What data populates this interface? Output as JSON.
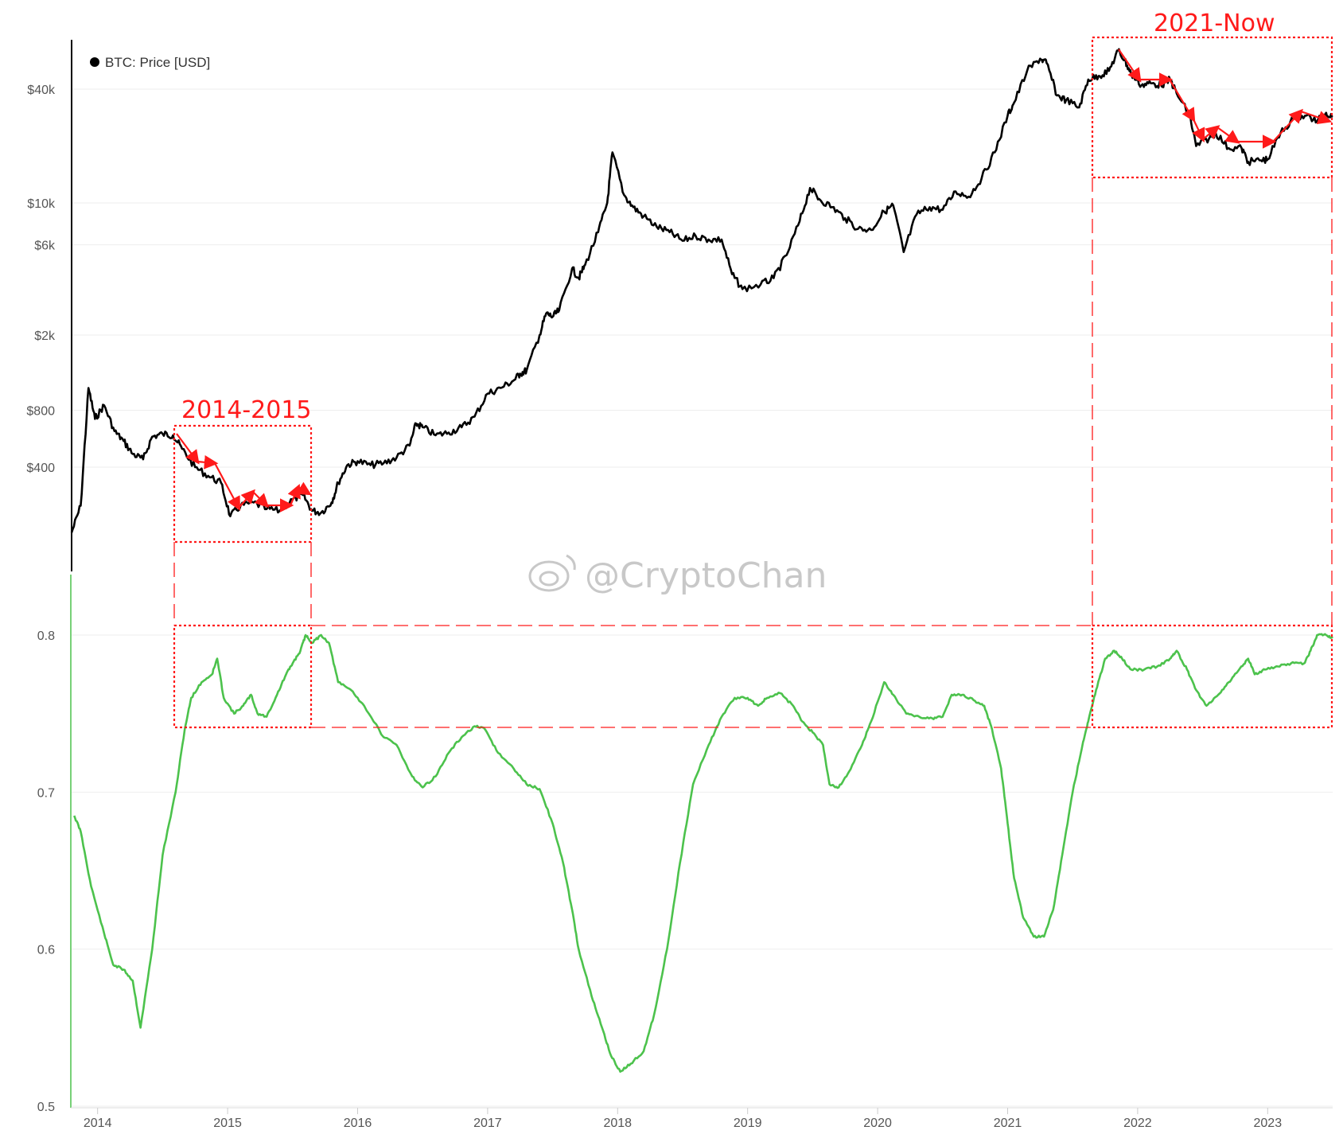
{
  "legend": {
    "label": "BTC: Price [USD]",
    "color": "#000000"
  },
  "annotations": {
    "period_1": "2014-2015",
    "period_2": "2021-Now",
    "color": "#ff1a1a"
  },
  "watermark": "@CryptoChan",
  "chart_data": [
    {
      "type": "line",
      "title": "",
      "yscale": "log",
      "ylim": [
        120,
        80000
      ],
      "y_ticks": [
        {
          "label": "$40k",
          "value": 40000
        },
        {
          "label": "$10k",
          "value": 10000
        },
        {
          "label": "$6k",
          "value": 6000
        },
        {
          "label": "$2k",
          "value": 2000
        },
        {
          "label": "$800",
          "value": 800
        },
        {
          "label": "$400",
          "value": 400
        }
      ],
      "series": [
        {
          "name": "BTC: Price [USD]",
          "color": "#000000",
          "points": [
            [
              2013.8,
              180
            ],
            [
              2013.87,
              250
            ],
            [
              2013.93,
              1050
            ],
            [
              2013.98,
              720
            ],
            [
              2014.05,
              850
            ],
            [
              2014.13,
              620
            ],
            [
              2014.2,
              550
            ],
            [
              2014.27,
              470
            ],
            [
              2014.35,
              440
            ],
            [
              2014.42,
              580
            ],
            [
              2014.5,
              600
            ],
            [
              2014.58,
              590
            ],
            [
              2014.65,
              500
            ],
            [
              2014.75,
              400
            ],
            [
              2014.85,
              360
            ],
            [
              2014.95,
              330
            ],
            [
              2015.02,
              220
            ],
            [
              2015.1,
              250
            ],
            [
              2015.2,
              260
            ],
            [
              2015.3,
              240
            ],
            [
              2015.4,
              235
            ],
            [
              2015.5,
              270
            ],
            [
              2015.58,
              285
            ],
            [
              2015.65,
              235
            ],
            [
              2015.72,
              230
            ],
            [
              2015.8,
              260
            ],
            [
              2015.85,
              330
            ],
            [
              2015.92,
              410
            ],
            [
              2016.0,
              430
            ],
            [
              2016.1,
              410
            ],
            [
              2016.2,
              420
            ],
            [
              2016.3,
              450
            ],
            [
              2016.4,
              520
            ],
            [
              2016.45,
              680
            ],
            [
              2016.5,
              650
            ],
            [
              2016.6,
              590
            ],
            [
              2016.7,
              610
            ],
            [
              2016.8,
              650
            ],
            [
              2016.9,
              740
            ],
            [
              2017.0,
              980
            ],
            [
              2017.1,
              1050
            ],
            [
              2017.2,
              1150
            ],
            [
              2017.25,
              1250
            ],
            [
              2017.3,
              1300
            ],
            [
              2017.4,
              2000
            ],
            [
              2017.45,
              2600
            ],
            [
              2017.5,
              2500
            ],
            [
              2017.55,
              2700
            ],
            [
              2017.65,
              4500
            ],
            [
              2017.7,
              4000
            ],
            [
              2017.75,
              4700
            ],
            [
              2017.85,
              7000
            ],
            [
              2017.92,
              10000
            ],
            [
              2017.96,
              18500
            ],
            [
              2018.05,
              11000
            ],
            [
              2018.12,
              9500
            ],
            [
              2018.2,
              8500
            ],
            [
              2018.3,
              7500
            ],
            [
              2018.4,
              7000
            ],
            [
              2018.5,
              6300
            ],
            [
              2018.6,
              6700
            ],
            [
              2018.7,
              6400
            ],
            [
              2018.8,
              6400
            ],
            [
              2018.88,
              4200
            ],
            [
              2018.96,
              3500
            ],
            [
              2019.1,
              3700
            ],
            [
              2019.2,
              4000
            ],
            [
              2019.3,
              5300
            ],
            [
              2019.4,
              8000
            ],
            [
              2019.48,
              12000
            ],
            [
              2019.55,
              10500
            ],
            [
              2019.65,
              9500
            ],
            [
              2019.75,
              8300
            ],
            [
              2019.85,
              7300
            ],
            [
              2019.95,
              7200
            ],
            [
              2020.05,
              9000
            ],
            [
              2020.12,
              9700
            ],
            [
              2020.2,
              5500
            ],
            [
              2020.3,
              8700
            ],
            [
              2020.4,
              9500
            ],
            [
              2020.5,
              9200
            ],
            [
              2020.6,
              11500
            ],
            [
              2020.7,
              10800
            ],
            [
              2020.8,
              13500
            ],
            [
              2020.9,
              18500
            ],
            [
              2021.0,
              29000
            ],
            [
              2021.05,
              34000
            ],
            [
              2021.15,
              50000
            ],
            [
              2021.25,
              58000
            ],
            [
              2021.3,
              55000
            ],
            [
              2021.38,
              37000
            ],
            [
              2021.45,
              35000
            ],
            [
              2021.55,
              32000
            ],
            [
              2021.62,
              45000
            ],
            [
              2021.7,
              47000
            ],
            [
              2021.78,
              50000
            ],
            [
              2021.85,
              64000
            ],
            [
              2021.9,
              57000
            ],
            [
              2021.95,
              48000
            ],
            [
              2022.03,
              42000
            ],
            [
              2022.1,
              43000
            ],
            [
              2022.18,
              42000
            ],
            [
              2022.25,
              45000
            ],
            [
              2022.3,
              38000
            ],
            [
              2022.4,
              29000
            ],
            [
              2022.45,
              20000
            ],
            [
              2022.55,
              22000
            ],
            [
              2022.6,
              23500
            ],
            [
              2022.7,
              19500
            ],
            [
              2022.8,
              19500
            ],
            [
              2022.85,
              16500
            ],
            [
              2022.95,
              16800
            ],
            [
              2023.0,
              17000
            ],
            [
              2023.1,
              23500
            ],
            [
              2023.2,
              28000
            ],
            [
              2023.3,
              29000
            ],
            [
              2023.38,
              27000
            ],
            [
              2023.45,
              30000
            ],
            [
              2023.5,
              28500
            ]
          ]
        }
      ]
    },
    {
      "type": "line",
      "title": "",
      "ylim": [
        0.5,
        0.83
      ],
      "y_ticks": [
        {
          "label": "0.8",
          "value": 0.8
        },
        {
          "label": "0.7",
          "value": 0.7
        },
        {
          "label": "0.6",
          "value": 0.6
        },
        {
          "label": "0.5",
          "value": 0.5
        }
      ],
      "x_ticks": [
        {
          "label": "2014",
          "value": 2014
        },
        {
          "label": "2015",
          "value": 2015
        },
        {
          "label": "2016",
          "value": 2016
        },
        {
          "label": "2017",
          "value": 2017
        },
        {
          "label": "2018",
          "value": 2018
        },
        {
          "label": "2019",
          "value": 2019
        },
        {
          "label": "2020",
          "value": 2020
        },
        {
          "label": "2021",
          "value": 2021
        },
        {
          "label": "2022",
          "value": 2022
        },
        {
          "label": "2023",
          "value": 2023
        }
      ],
      "xlim": [
        2013.8,
        2023.5
      ],
      "series": [
        {
          "name": "",
          "color": "#4cc24c",
          "points": [
            [
              2013.82,
              0.685
            ],
            [
              2013.87,
              0.675
            ],
            [
              2013.95,
              0.64
            ],
            [
              2014.05,
              0.61
            ],
            [
              2014.12,
              0.59
            ],
            [
              2014.2,
              0.587
            ],
            [
              2014.27,
              0.58
            ],
            [
              2014.33,
              0.55
            ],
            [
              2014.42,
              0.6
            ],
            [
              2014.5,
              0.66
            ],
            [
              2014.6,
              0.7
            ],
            [
              2014.67,
              0.74
            ],
            [
              2014.72,
              0.76
            ],
            [
              2014.8,
              0.77
            ],
            [
              2014.88,
              0.775
            ],
            [
              2014.92,
              0.785
            ],
            [
              2014.97,
              0.76
            ],
            [
              2015.05,
              0.75
            ],
            [
              2015.12,
              0.755
            ],
            [
              2015.18,
              0.762
            ],
            [
              2015.23,
              0.75
            ],
            [
              2015.3,
              0.748
            ],
            [
              2015.38,
              0.762
            ],
            [
              2015.45,
              0.775
            ],
            [
              2015.5,
              0.782
            ],
            [
              2015.56,
              0.79
            ],
            [
              2015.6,
              0.8
            ],
            [
              2015.65,
              0.795
            ],
            [
              2015.72,
              0.8
            ],
            [
              2015.78,
              0.795
            ],
            [
              2015.85,
              0.77
            ],
            [
              2015.95,
              0.765
            ],
            [
              2016.05,
              0.755
            ],
            [
              2016.2,
              0.735
            ],
            [
              2016.3,
              0.73
            ],
            [
              2016.42,
              0.71
            ],
            [
              2016.5,
              0.703
            ],
            [
              2016.6,
              0.71
            ],
            [
              2016.7,
              0.725
            ],
            [
              2016.8,
              0.735
            ],
            [
              2016.9,
              0.742
            ],
            [
              2016.98,
              0.74
            ],
            [
              2017.08,
              0.725
            ],
            [
              2017.2,
              0.715
            ],
            [
              2017.3,
              0.705
            ],
            [
              2017.4,
              0.702
            ],
            [
              2017.5,
              0.68
            ],
            [
              2017.58,
              0.655
            ],
            [
              2017.65,
              0.625
            ],
            [
              2017.7,
              0.6
            ],
            [
              2017.8,
              0.57
            ],
            [
              2017.88,
              0.55
            ],
            [
              2017.95,
              0.532
            ],
            [
              2018.02,
              0.522
            ],
            [
              2018.1,
              0.527
            ],
            [
              2018.2,
              0.535
            ],
            [
              2018.28,
              0.558
            ],
            [
              2018.38,
              0.6
            ],
            [
              2018.48,
              0.655
            ],
            [
              2018.58,
              0.705
            ],
            [
              2018.7,
              0.73
            ],
            [
              2018.8,
              0.748
            ],
            [
              2018.9,
              0.76
            ],
            [
              2019.0,
              0.76
            ],
            [
              2019.08,
              0.755
            ],
            [
              2019.15,
              0.76
            ],
            [
              2019.25,
              0.763
            ],
            [
              2019.35,
              0.755
            ],
            [
              2019.42,
              0.745
            ],
            [
              2019.5,
              0.738
            ],
            [
              2019.58,
              0.73
            ],
            [
              2019.63,
              0.705
            ],
            [
              2019.7,
              0.703
            ],
            [
              2019.78,
              0.713
            ],
            [
              2019.88,
              0.73
            ],
            [
              2019.95,
              0.745
            ],
            [
              2020.05,
              0.77
            ],
            [
              2020.12,
              0.762
            ],
            [
              2020.22,
              0.75
            ],
            [
              2020.32,
              0.748
            ],
            [
              2020.42,
              0.747
            ],
            [
              2020.5,
              0.748
            ],
            [
              2020.57,
              0.762
            ],
            [
              2020.65,
              0.762
            ],
            [
              2020.75,
              0.758
            ],
            [
              2020.82,
              0.755
            ],
            [
              2020.88,
              0.74
            ],
            [
              2020.95,
              0.715
            ],
            [
              2021.0,
              0.68
            ],
            [
              2021.05,
              0.645
            ],
            [
              2021.12,
              0.62
            ],
            [
              2021.2,
              0.608
            ],
            [
              2021.28,
              0.608
            ],
            [
              2021.35,
              0.625
            ],
            [
              2021.42,
              0.66
            ],
            [
              2021.5,
              0.7
            ],
            [
              2021.58,
              0.732
            ],
            [
              2021.62,
              0.745
            ],
            [
              2021.68,
              0.765
            ],
            [
              2021.75,
              0.785
            ],
            [
              2021.82,
              0.79
            ],
            [
              2021.88,
              0.785
            ],
            [
              2021.95,
              0.778
            ],
            [
              2022.05,
              0.778
            ],
            [
              2022.15,
              0.78
            ],
            [
              2022.25,
              0.785
            ],
            [
              2022.3,
              0.79
            ],
            [
              2022.38,
              0.778
            ],
            [
              2022.45,
              0.765
            ],
            [
              2022.53,
              0.755
            ],
            [
              2022.62,
              0.762
            ],
            [
              2022.7,
              0.77
            ],
            [
              2022.78,
              0.778
            ],
            [
              2022.85,
              0.785
            ],
            [
              2022.9,
              0.775
            ],
            [
              2022.98,
              0.778
            ],
            [
              2023.08,
              0.78
            ],
            [
              2023.18,
              0.782
            ],
            [
              2023.28,
              0.782
            ],
            [
              2023.33,
              0.79
            ],
            [
              2023.38,
              0.8
            ],
            [
              2023.45,
              0.8
            ],
            [
              2023.5,
              0.798
            ]
          ]
        }
      ]
    }
  ]
}
